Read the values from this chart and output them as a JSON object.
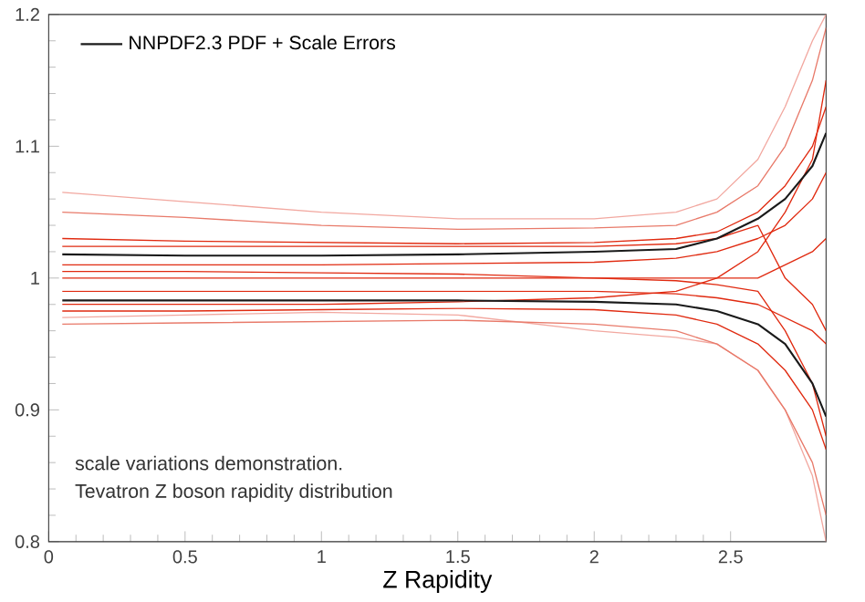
{
  "chart_data": {
    "type": "line",
    "xlabel": "Z Rapidity",
    "xlim": [
      0,
      2.85
    ],
    "ylim": [
      0.8,
      1.2
    ],
    "xticks": [
      0,
      0.5,
      1,
      1.5,
      2,
      2.5
    ],
    "yticks": [
      0.8,
      0.9,
      1,
      1.1,
      1.2
    ],
    "legend": "top left",
    "marker": "none",
    "line_style": "solid",
    "x": [
      0.05,
      0.5,
      1,
      1.5,
      2,
      2.3,
      2.45,
      2.6,
      2.7,
      2.8,
      2.85
    ],
    "series": [
      {
        "color": "#f2a8a0",
        "values": [
          1.065,
          1.058,
          1.05,
          1.045,
          1.045,
          1.05,
          1.06,
          1.09,
          1.13,
          1.18,
          1.2
        ]
      },
      {
        "color": "#e87a6a",
        "values": [
          1.05,
          1.046,
          1.04,
          1.037,
          1.038,
          1.04,
          1.05,
          1.07,
          1.1,
          1.15,
          1.19
        ]
      },
      {
        "color": "#f2a8a0",
        "values": [
          0.97,
          0.972,
          0.974,
          0.972,
          0.96,
          0.955,
          0.95,
          0.93,
          0.9,
          0.85,
          0.8
        ]
      },
      {
        "color": "#e87a6a",
        "values": [
          0.965,
          0.966,
          0.967,
          0.968,
          0.965,
          0.96,
          0.95,
          0.93,
          0.9,
          0.86,
          0.82
        ]
      },
      {
        "color": "#e02a10",
        "values": [
          1.03,
          1.028,
          1.027,
          1.026,
          1.027,
          1.03,
          1.035,
          1.05,
          1.07,
          1.1,
          1.13
        ]
      },
      {
        "color": "#e02a10",
        "values": [
          1.01,
          1.01,
          1.01,
          1.011,
          1.012,
          1.015,
          1.02,
          1.03,
          1.04,
          1.06,
          1.08
        ]
      },
      {
        "color": "#e02a10",
        "values": [
          1.0,
          1.0,
          1.0,
          1.0,
          1.0,
          1.0,
          1.0,
          1.0,
          1.01,
          1.02,
          1.03
        ]
      },
      {
        "color": "#e02a10",
        "values": [
          0.99,
          0.99,
          0.99,
          0.99,
          0.99,
          0.988,
          0.985,
          0.98,
          0.97,
          0.96,
          0.95
        ]
      },
      {
        "color": "#e02a10",
        "values": [
          0.975,
          0.975,
          0.976,
          0.977,
          0.976,
          0.972,
          0.965,
          0.95,
          0.93,
          0.9,
          0.87
        ]
      },
      {
        "color": "#e02a10",
        "values": [
          1.024,
          1.024,
          1.024,
          1.024,
          1.024,
          1.026,
          1.03,
          1.04,
          1.0,
          0.98,
          0.96
        ]
      },
      {
        "color": "#e02a10",
        "values": [
          0.98,
          0.98,
          0.98,
          0.982,
          0.985,
          0.99,
          1.0,
          1.02,
          1.05,
          1.09,
          1.15
        ]
      },
      {
        "color": "#e02a10",
        "values": [
          1.005,
          1.005,
          1.004,
          1.003,
          1.0,
          0.998,
          0.995,
          0.99,
          0.96,
          0.92,
          0.88
        ]
      },
      {
        "name": "NNPDF2.3 PDF + Scale Errors",
        "color": "#1a1a1a",
        "values": [
          1.018,
          1.017,
          1.017,
          1.018,
          1.02,
          1.022,
          1.03,
          1.045,
          1.06,
          1.085,
          1.11
        ]
      },
      {
        "color": "#1a1a1a",
        "values": [
          0.983,
          0.983,
          0.983,
          0.983,
          0.982,
          0.98,
          0.975,
          0.965,
          0.95,
          0.92,
          0.895
        ]
      }
    ],
    "annotations": [
      "scale variations demonstration.",
      "Tevatron Z boson rapidity distribution"
    ]
  }
}
